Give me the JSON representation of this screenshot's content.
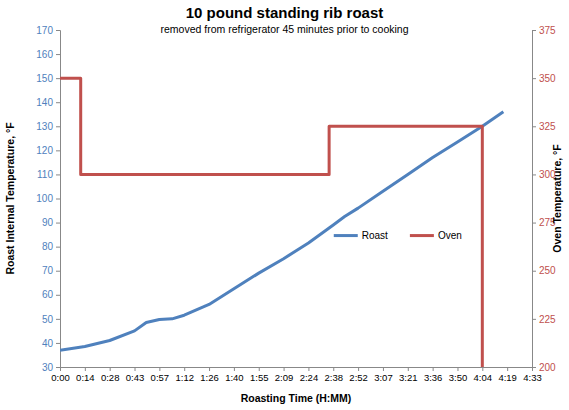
{
  "chart_data": {
    "type": "line",
    "title": "10 pound standing rib roast",
    "subtitle": "removed from refrigerator 45 minutes prior to cooking",
    "x_label": "Roasting Time (H:MM)",
    "y_label": "Roast Internal Temperature, °F",
    "y2_label": "Oven Temperature, °F",
    "xlim": [
      0,
      273.6
    ],
    "xticks": [
      {
        "value": 0,
        "label": "0:00"
      },
      {
        "value": 14.4,
        "label": "0:14"
      },
      {
        "value": 28.8,
        "label": "0:28"
      },
      {
        "value": 43.2,
        "label": "0:43"
      },
      {
        "value": 57.6,
        "label": "0:57"
      },
      {
        "value": 72,
        "label": "1:12"
      },
      {
        "value": 86.4,
        "label": "1:26"
      },
      {
        "value": 100.8,
        "label": "1:40"
      },
      {
        "value": 115.2,
        "label": "1:55"
      },
      {
        "value": 129.6,
        "label": "2:09"
      },
      {
        "value": 144,
        "label": "2:24"
      },
      {
        "value": 158.4,
        "label": "2:38"
      },
      {
        "value": 172.8,
        "label": "2:52"
      },
      {
        "value": 187.2,
        "label": "3:07"
      },
      {
        "value": 201.6,
        "label": "3:21"
      },
      {
        "value": 216,
        "label": "3:36"
      },
      {
        "value": 230.4,
        "label": "3:50"
      },
      {
        "value": 244.8,
        "label": "4:04"
      },
      {
        "value": 259.2,
        "label": "4:19"
      },
      {
        "value": 273.6,
        "label": "4:33"
      }
    ],
    "ylim": [
      30,
      170
    ],
    "yticks": [
      30,
      40,
      50,
      60,
      70,
      80,
      90,
      100,
      110,
      120,
      130,
      140,
      150,
      160,
      170
    ],
    "y2lim": [
      200,
      375
    ],
    "y2ticks": [
      200,
      225,
      250,
      275,
      300,
      325,
      350,
      375
    ],
    "grid": false,
    "legend": "center",
    "series": [
      {
        "name": "Roast",
        "color": "#4F81BD",
        "x": [
          0,
          14.4,
          28.8,
          43.2,
          50,
          57.6,
          65,
          72,
          86.4,
          100.8,
          115.2,
          129.6,
          144,
          158.4,
          165,
          172.8,
          187.2,
          201.6,
          216,
          230.4,
          244.8,
          257
        ],
        "values": [
          37,
          38.5,
          41,
          45,
          48.5,
          49.7,
          50,
          51.5,
          56,
          62.5,
          69,
          75,
          81.5,
          89,
          92.5,
          96,
          103,
          110,
          117,
          123.5,
          130,
          136
        ]
      },
      {
        "name": "Oven",
        "color": "#C0504D",
        "axis": "y2",
        "x": [
          0,
          12,
          12,
          156,
          156,
          244.8,
          244.8
        ],
        "values": [
          350,
          350,
          300,
          300,
          325,
          325,
          200
        ]
      }
    ]
  }
}
